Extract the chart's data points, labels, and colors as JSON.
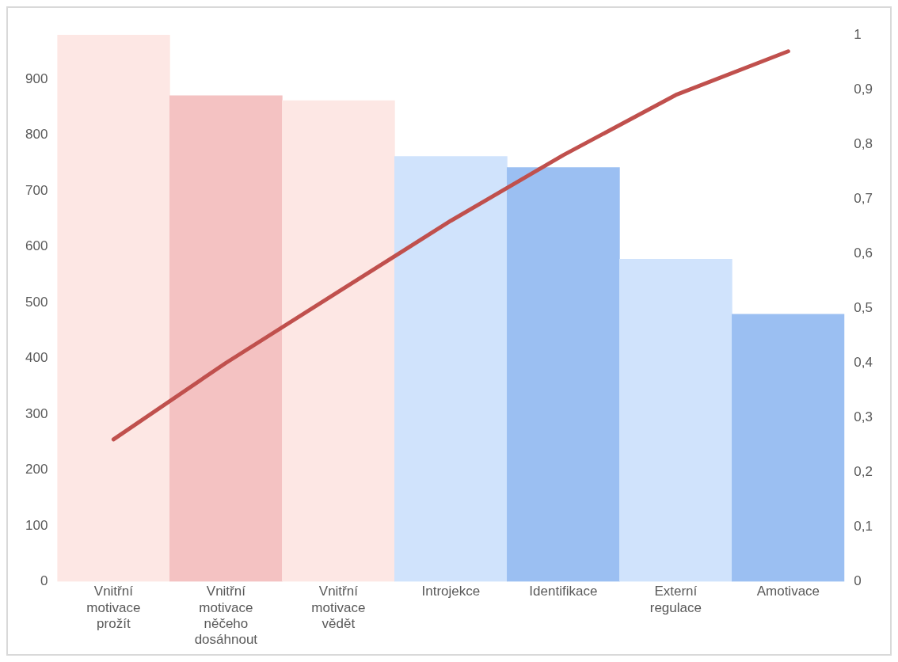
{
  "chart_data": {
    "type": "bar",
    "categories": [
      "Vnitřní motivace prožít",
      "Vnitřní motivace něčeho dosáhnout",
      "Vnitřní motivace vědět",
      "Introjekce",
      "Identifikace",
      "Externí regulace",
      "Amotivace"
    ],
    "series": [
      {
        "colors": [
          "#fde7e4",
          "#f4c2c2",
          "#fde7e4",
          "#d0e3fc",
          "#9bbff2",
          "#d0e3fc",
          "#9bbff2"
        ],
        "values": [
          980,
          871,
          862,
          762,
          742,
          578,
          479
        ]
      },
      {
        "type": "line",
        "axis": "y2",
        "color": "#c0504d",
        "values": [
          0.26,
          0.4,
          0.53,
          0.66,
          0.78,
          0.89,
          0.97
        ]
      }
    ],
    "ylim": [
      0,
      980
    ],
    "yticks": [
      0,
      100,
      200,
      300,
      400,
      500,
      600,
      700,
      800,
      900
    ],
    "y2lim": [
      0,
      1
    ],
    "y2ticks": [
      0,
      {
        "value": 0.1,
        "label": "0,1"
      },
      {
        "value": 0.2,
        "label": "0,2"
      },
      {
        "value": 0.3,
        "label": "0,3"
      },
      {
        "value": 0.4,
        "label": "0,4"
      },
      {
        "value": 0.5,
        "label": "0,5"
      },
      {
        "value": 0.6,
        "label": "0,6"
      },
      {
        "value": 0.7,
        "label": "0,7"
      },
      {
        "value": 0.8,
        "label": "0,8"
      },
      {
        "value": 0.9,
        "label": "0,9"
      },
      1
    ],
    "grid": false,
    "legend": false,
    "marker": "none"
  }
}
